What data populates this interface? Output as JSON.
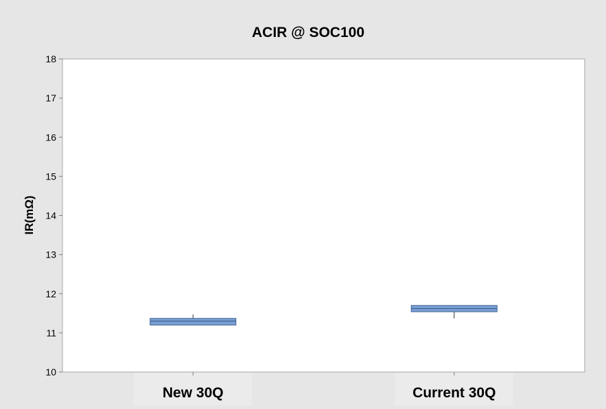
{
  "chart_data": {
    "type": "boxplot",
    "title": "ACIR @ SOC100",
    "xlabel": "",
    "ylabel": "IR(mΩ)",
    "ylim": [
      10,
      18
    ],
    "yticks": [
      10,
      11,
      12,
      13,
      14,
      15,
      16,
      17,
      18
    ],
    "grid": false,
    "categories": [
      "New 30Q",
      "Current 30Q"
    ],
    "boxes": [
      {
        "category": "New 30Q",
        "whisker_low": 11.2,
        "q1": 11.2,
        "median": 11.3,
        "q3": 11.37,
        "whisker_high": 11.47
      },
      {
        "category": "Current 30Q",
        "whisker_low": 11.37,
        "q1": 11.54,
        "median": 11.62,
        "q3": 11.7,
        "whisker_high": 11.7
      }
    ],
    "colors": {
      "box_fill": "#7ba0d4",
      "box_stroke": "#3d5f94",
      "plot_bg": "#ffffff",
      "figure_bg": "#e6e6e6",
      "axis": "#7f7f7f",
      "text": "#000000"
    }
  }
}
